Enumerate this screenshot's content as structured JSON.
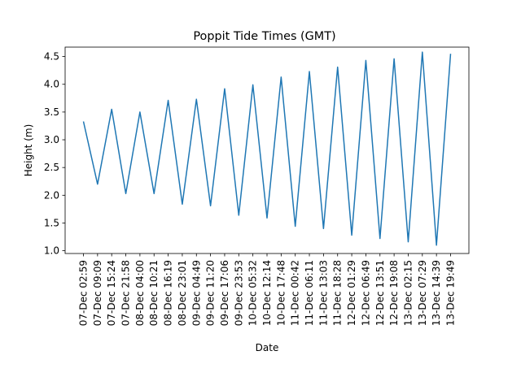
{
  "chart_data": {
    "type": "line",
    "title": "Poppit Tide Times (GMT)",
    "xlabel": "Date",
    "ylabel": "Height (m)",
    "x": [
      "07-Dec 02:59",
      "07-Dec 09:09",
      "07-Dec 15:24",
      "07-Dec 21:58",
      "08-Dec 04:00",
      "08-Dec 10:21",
      "08-Dec 16:19",
      "08-Dec 23:01",
      "09-Dec 04:49",
      "09-Dec 11:20",
      "09-Dec 17:06",
      "09-Dec 23:53",
      "10-Dec 05:32",
      "10-Dec 12:14",
      "10-Dec 17:48",
      "11-Dec 00:42",
      "11-Dec 06:11",
      "11-Dec 13:03",
      "11-Dec 18:28",
      "12-Dec 01:29",
      "12-Dec 06:49",
      "12-Dec 13:51",
      "12-Dec 19:08",
      "13-Dec 02:15",
      "13-Dec 07:29",
      "13-Dec 14:39",
      "13-Dec 19:49"
    ],
    "series": [
      {
        "values": [
          3.33,
          2.2,
          3.55,
          2.03,
          3.5,
          2.03,
          3.71,
          1.84,
          3.73,
          1.81,
          3.92,
          1.64,
          3.99,
          1.59,
          4.13,
          1.44,
          4.23,
          1.4,
          4.31,
          1.28,
          4.43,
          1.22,
          4.46,
          1.16,
          4.58,
          1.1,
          4.55
        ],
        "color": "#1f77b4"
      }
    ],
    "yticks": [
      "1.0",
      "1.5",
      "2.0",
      "2.5",
      "3.0",
      "3.5",
      "4.0",
      "4.5"
    ],
    "ylim": [
      0.95,
      4.67
    ],
    "grid": false,
    "legend": "none"
  }
}
